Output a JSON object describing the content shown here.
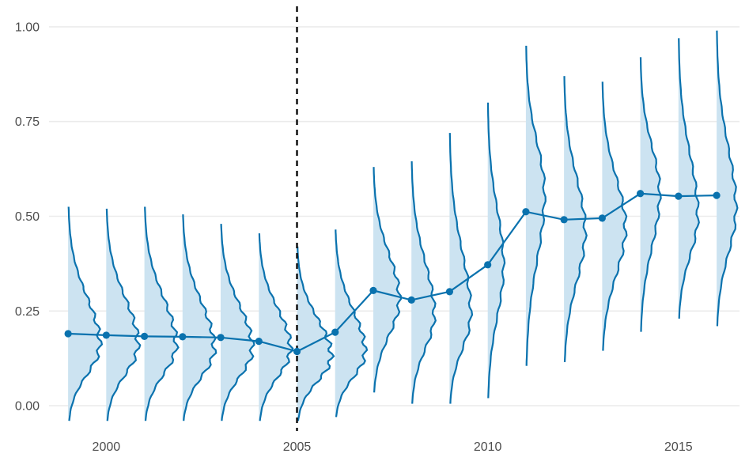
{
  "chart_data": {
    "type": "line",
    "title": "",
    "xlabel": "",
    "ylabel": "",
    "xlim": [
      1998.5,
      2016.6
    ],
    "ylim": [
      -0.05,
      1.05
    ],
    "x_ticks": [
      2000,
      2005,
      2010,
      2015
    ],
    "x_tick_labels": [
      "2000",
      "2005",
      "2010",
      "2015"
    ],
    "y_ticks": [
      0,
      0.25,
      0.5,
      0.75,
      1.0
    ],
    "y_tick_labels": [
      "0.00",
      "0.25",
      "0.50",
      "0.75",
      "1.00"
    ],
    "grid": "horizontal",
    "reference_line": {
      "x": 2005,
      "style": "dashed"
    },
    "colors": {
      "line": "#0a72ae",
      "fill": "#cce3f1",
      "grid": "#ebebeb",
      "reference": "#111111"
    },
    "series": [
      {
        "x": [
          1999,
          2000,
          2001,
          2002,
          2003,
          2004,
          2005,
          2006,
          2007,
          2008,
          2009,
          2010,
          2011,
          2012,
          2013,
          2014,
          2015,
          2016
        ],
        "y": [
          0.19,
          0.186,
          0.183,
          0.182,
          0.18,
          0.17,
          0.143,
          0.194,
          0.304,
          0.279,
          0.301,
          0.372,
          0.512,
          0.491,
          0.495,
          0.56,
          0.553,
          0.555
        ]
      }
    ],
    "distributions": [
      {
        "x": 1999,
        "y_range": [
          -0.04,
          0.525
        ],
        "mode": 0.16,
        "peak_width": 0.9
      },
      {
        "x": 2000,
        "y_range": [
          -0.04,
          0.52
        ],
        "mode": 0.16,
        "peak_width": 0.9
      },
      {
        "x": 2001,
        "y_range": [
          -0.04,
          0.525
        ],
        "mode": 0.16,
        "peak_width": 0.9
      },
      {
        "x": 2002,
        "y_range": [
          -0.04,
          0.505
        ],
        "mode": 0.15,
        "peak_width": 0.9
      },
      {
        "x": 2003,
        "y_range": [
          -0.04,
          0.48
        ],
        "mode": 0.15,
        "peak_width": 0.9
      },
      {
        "x": 2004,
        "y_range": [
          -0.04,
          0.455
        ],
        "mode": 0.15,
        "peak_width": 0.9
      },
      {
        "x": 2005,
        "y_range": [
          -0.04,
          0.42
        ],
        "mode": 0.13,
        "peak_width": 0.97
      },
      {
        "x": 2006,
        "y_range": [
          -0.03,
          0.465
        ],
        "mode": 0.14,
        "peak_width": 0.85
      },
      {
        "x": 2007,
        "y_range": [
          0.035,
          0.63
        ],
        "mode": 0.28,
        "peak_width": 0.74
      },
      {
        "x": 2008,
        "y_range": [
          0.005,
          0.645
        ],
        "mode": 0.24,
        "peak_width": 0.65
      },
      {
        "x": 2009,
        "y_range": [
          0.005,
          0.72
        ],
        "mode": 0.24,
        "peak_width": 0.6
      },
      {
        "x": 2010,
        "y_range": [
          0.02,
          0.8
        ],
        "mode": 0.37,
        "peak_width": 0.45
      },
      {
        "x": 2011,
        "y_range": [
          0.105,
          0.95
        ],
        "mode": 0.56,
        "peak_width": 0.53
      },
      {
        "x": 2012,
        "y_range": [
          0.115,
          0.87
        ],
        "mode": 0.46,
        "peak_width": 0.6
      },
      {
        "x": 2013,
        "y_range": [
          0.145,
          0.855
        ],
        "mode": 0.47,
        "peak_width": 0.66
      },
      {
        "x": 2014,
        "y_range": [
          0.195,
          0.92
        ],
        "mode": 0.56,
        "peak_width": 0.55
      },
      {
        "x": 2015,
        "y_range": [
          0.23,
          0.97
        ],
        "mode": 0.5,
        "peak_width": 0.55
      },
      {
        "x": 2016,
        "y_range": [
          0.21,
          0.99
        ],
        "mode": 0.52,
        "peak_width": 0.55
      }
    ]
  }
}
